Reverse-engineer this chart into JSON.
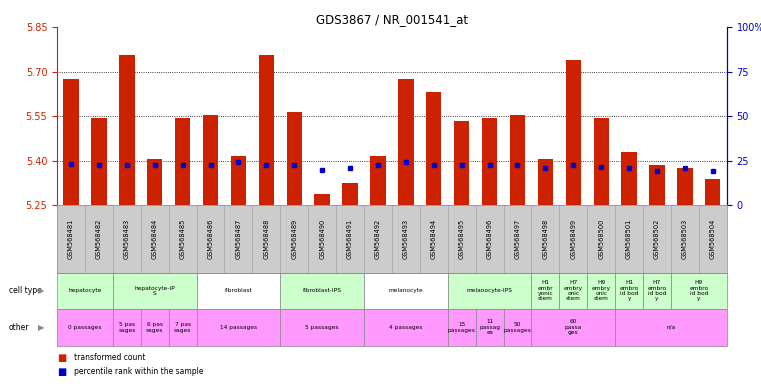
{
  "title": "GDS3867 / NR_001541_at",
  "samples": [
    "GSM568481",
    "GSM568482",
    "GSM568483",
    "GSM568484",
    "GSM568485",
    "GSM568486",
    "GSM568487",
    "GSM568488",
    "GSM568489",
    "GSM568490",
    "GSM568491",
    "GSM568492",
    "GSM568493",
    "GSM568494",
    "GSM568495",
    "GSM568496",
    "GSM568497",
    "GSM568498",
    "GSM568499",
    "GSM568500",
    "GSM568501",
    "GSM568502",
    "GSM568503",
    "GSM568504"
  ],
  "red_values": [
    5.675,
    5.545,
    5.755,
    5.405,
    5.545,
    5.555,
    5.415,
    5.755,
    5.565,
    5.29,
    5.325,
    5.415,
    5.675,
    5.63,
    5.535,
    5.545,
    5.555,
    5.405,
    5.74,
    5.545,
    5.43,
    5.385,
    5.375,
    5.34
  ],
  "blue_values": [
    5.39,
    5.385,
    5.385,
    5.385,
    5.385,
    5.385,
    5.395,
    5.385,
    5.385,
    5.37,
    5.375,
    5.385,
    5.395,
    5.385,
    5.385,
    5.385,
    5.385,
    5.375,
    5.385,
    5.38,
    5.375,
    5.365,
    5.375,
    5.365
  ],
  "ylim_left": [
    5.25,
    5.85
  ],
  "yticks_left": [
    5.25,
    5.4,
    5.55,
    5.7,
    5.85
  ],
  "ylim_right": [
    0,
    100
  ],
  "yticks_right": [
    0,
    25,
    50,
    75,
    100
  ],
  "hline_values": [
    5.4,
    5.55,
    5.7
  ],
  "cell_types": [
    {
      "label": "hepatocyte",
      "start": 0,
      "end": 2,
      "color": "#ccffcc"
    },
    {
      "label": "hepatocyte-iP\nS",
      "start": 2,
      "end": 5,
      "color": "#ccffcc"
    },
    {
      "label": "fibroblast",
      "start": 5,
      "end": 8,
      "color": "#ffffff"
    },
    {
      "label": "fibroblast-IPS",
      "start": 8,
      "end": 11,
      "color": "#ccffcc"
    },
    {
      "label": "melanocyte",
      "start": 11,
      "end": 14,
      "color": "#ffffff"
    },
    {
      "label": "melanocyte-IPS",
      "start": 14,
      "end": 17,
      "color": "#ccffcc"
    },
    {
      "label": "H1\nembr\nyonic\nstem",
      "start": 17,
      "end": 18,
      "color": "#ccffcc"
    },
    {
      "label": "H7\nembry\nonic\nstem",
      "start": 18,
      "end": 19,
      "color": "#ccffcc"
    },
    {
      "label": "H9\nembry\nonic\nstem",
      "start": 19,
      "end": 20,
      "color": "#ccffcc"
    },
    {
      "label": "H1\nembro\nid bod\ny",
      "start": 20,
      "end": 21,
      "color": "#ccffcc"
    },
    {
      "label": "H7\nembro\nid bod\ny",
      "start": 21,
      "end": 22,
      "color": "#ccffcc"
    },
    {
      "label": "H9\nembro\nid bod\ny",
      "start": 22,
      "end": 24,
      "color": "#ccffcc"
    }
  ],
  "other_rows": [
    {
      "label": "0 passages",
      "start": 0,
      "end": 2,
      "color": "#ff99ff"
    },
    {
      "label": "5 pas\nsages",
      "start": 2,
      "end": 3,
      "color": "#ff99ff"
    },
    {
      "label": "6 pas\nsages",
      "start": 3,
      "end": 4,
      "color": "#ff99ff"
    },
    {
      "label": "7 pas\nsages",
      "start": 4,
      "end": 5,
      "color": "#ff99ff"
    },
    {
      "label": "14 passages",
      "start": 5,
      "end": 8,
      "color": "#ff99ff"
    },
    {
      "label": "5 passages",
      "start": 8,
      "end": 11,
      "color": "#ff99ff"
    },
    {
      "label": "4 passages",
      "start": 11,
      "end": 14,
      "color": "#ff99ff"
    },
    {
      "label": "15\npassages",
      "start": 14,
      "end": 15,
      "color": "#ff99ff"
    },
    {
      "label": "11\npassag\nes",
      "start": 15,
      "end": 16,
      "color": "#ff99ff"
    },
    {
      "label": "50\npassages",
      "start": 16,
      "end": 17,
      "color": "#ff99ff"
    },
    {
      "label": "60\npassa\nges",
      "start": 17,
      "end": 20,
      "color": "#ff99ff"
    },
    {
      "label": "n/a",
      "start": 20,
      "end": 24,
      "color": "#ff99ff"
    }
  ],
  "bar_color": "#cc2200",
  "dot_color": "#0000cc",
  "title_color": "#000000",
  "left_axis_color": "#cc2200",
  "right_axis_color": "#0000cc",
  "grid_color": "#000000",
  "bg_color": "#ffffff",
  "xtick_bg": "#cccccc"
}
